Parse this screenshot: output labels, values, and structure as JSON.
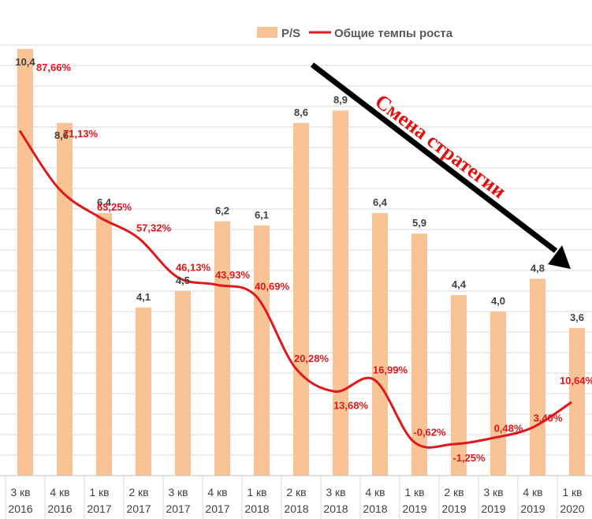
{
  "chart_data": {
    "type": "bar",
    "categories": [
      [
        "3 кв",
        "2016"
      ],
      [
        "4 кв",
        "2016"
      ],
      [
        "1 кв",
        "2017"
      ],
      [
        "2 кв",
        "2017"
      ],
      [
        "3 кв",
        "2017"
      ],
      [
        "4 кв",
        "2017"
      ],
      [
        "1 кв",
        "2018"
      ],
      [
        "2 кв",
        "2018"
      ],
      [
        "3 кв",
        "2018"
      ],
      [
        "4 кв",
        "2018"
      ],
      [
        "1 кв",
        "2019"
      ],
      [
        "2 кв",
        "2019"
      ],
      [
        "3 кв",
        "2019"
      ],
      [
        "4 кв",
        "2019"
      ],
      [
        "1 кв",
        "2020"
      ]
    ],
    "series": [
      {
        "name": "P/S",
        "type": "bar",
        "color": "#f8c395",
        "values": [
          10.4,
          8.6,
          6.4,
          4.1,
          4.5,
          6.2,
          6.1,
          8.6,
          8.9,
          6.4,
          5.9,
          4.4,
          4.0,
          4.8,
          3.6
        ],
        "labels": [
          "10,4",
          "8,6",
          "6,4",
          "4,1",
          "4,5",
          "6,2",
          "6,1",
          "8,6",
          "8,9",
          "6,4",
          "5,9",
          "4,4",
          "4,0",
          "4,8",
          "3,6"
        ]
      },
      {
        "name": "Общие темпы роста",
        "type": "line",
        "color": "#e0181c",
        "values": [
          87.66,
          71.13,
          63.25,
          57.32,
          46.13,
          43.93,
          40.69,
          20.28,
          13.68,
          16.99,
          -0.62,
          -1.25,
          0.48,
          3.4,
          10.64
        ],
        "labels": [
          "87,66%",
          "71,13%",
          "63,25%",
          "57,32%",
          "46,13%",
          "43,93%",
          "40,69%",
          "20,28%",
          "13,68%",
          "16,99%",
          "-0,62%",
          "-1,25%",
          "0,48%",
          "3,40%",
          "10,64%"
        ]
      }
    ],
    "legend_position": "top",
    "grid": true,
    "annotation": {
      "text": "Смена стратегии",
      "color": "#e01010",
      "arrow_color": "#000000"
    }
  }
}
